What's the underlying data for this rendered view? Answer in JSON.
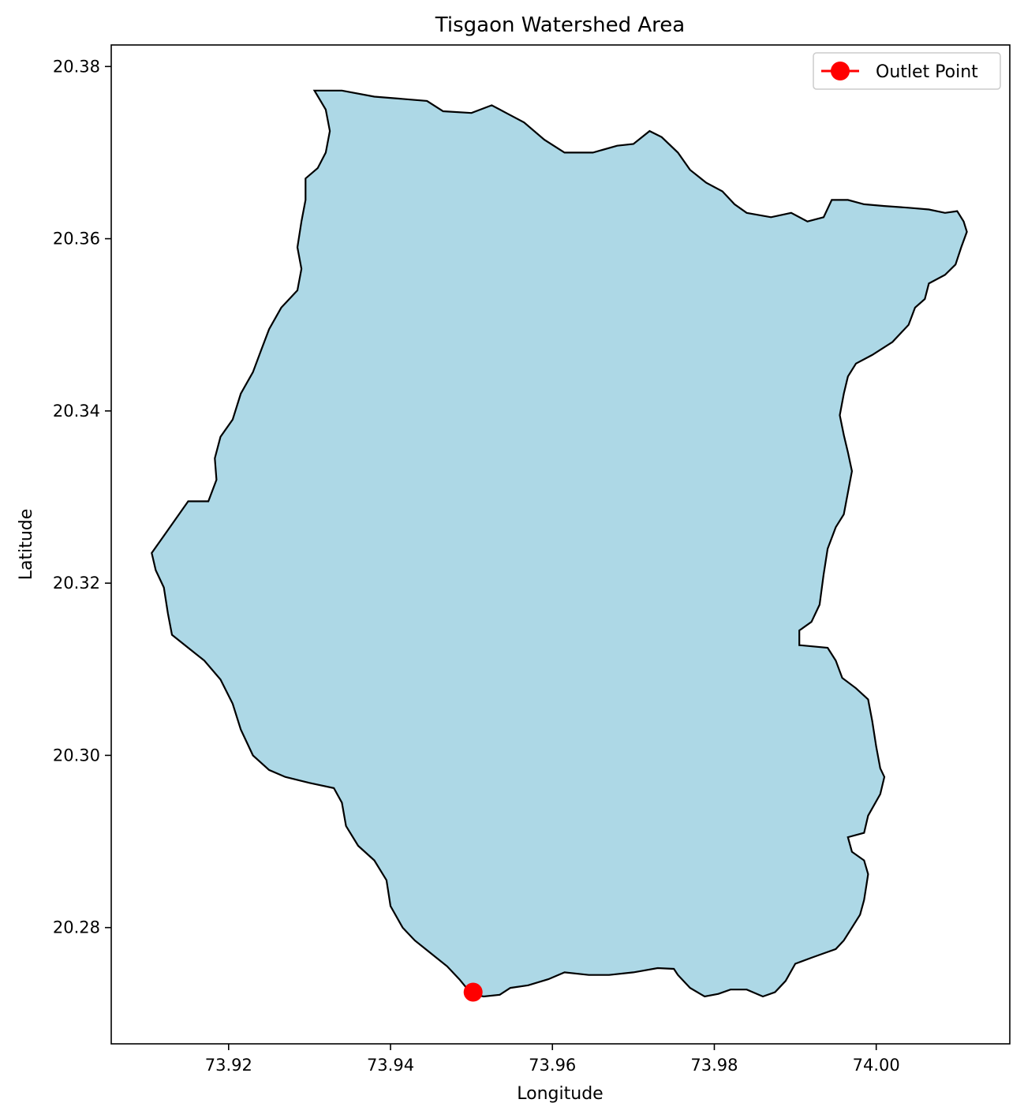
{
  "chart_data": {
    "type": "map",
    "title": "Tisgaon Watershed Area",
    "xlabel": "Longitude",
    "ylabel": "Latitude",
    "xlim": [
      73.9055,
      74.0165
    ],
    "ylim": [
      20.2665,
      20.3825
    ],
    "xticks": [
      73.92,
      73.94,
      73.96,
      73.98,
      74.0
    ],
    "xtick_labels": [
      "73.92",
      "73.94",
      "73.96",
      "73.98",
      "74.00"
    ],
    "yticks": [
      20.28,
      20.3,
      20.32,
      20.34,
      20.36,
      20.38
    ],
    "ytick_labels": [
      "20.28",
      "20.30",
      "20.32",
      "20.34",
      "20.36",
      "20.38"
    ],
    "watershed": {
      "fill": "#add8e6",
      "edge": "#000000",
      "boundary": [
        [
          73.9306,
          20.3772
        ],
        [
          73.934,
          20.3772
        ],
        [
          73.938,
          20.3765
        ],
        [
          73.942,
          20.3762
        ],
        [
          73.9445,
          20.376
        ],
        [
          73.9465,
          20.3748
        ],
        [
          73.95,
          20.3746
        ],
        [
          73.9525,
          20.3755
        ],
        [
          73.9545,
          20.3745
        ],
        [
          73.9565,
          20.3735
        ],
        [
          73.959,
          20.3715
        ],
        [
          73.9615,
          20.37
        ],
        [
          73.965,
          20.37
        ],
        [
          73.968,
          20.3708
        ],
        [
          73.97,
          20.371
        ],
        [
          73.972,
          20.3725
        ],
        [
          73.9735,
          20.3718
        ],
        [
          73.9755,
          20.37
        ],
        [
          73.977,
          20.368
        ],
        [
          73.979,
          20.3665
        ],
        [
          73.981,
          20.3655
        ],
        [
          73.9825,
          20.364
        ],
        [
          73.984,
          20.363
        ],
        [
          73.987,
          20.3625
        ],
        [
          73.9895,
          20.363
        ],
        [
          73.9915,
          20.362
        ],
        [
          73.9935,
          20.3625
        ],
        [
          73.9945,
          20.3645
        ],
        [
          73.9965,
          20.3645
        ],
        [
          73.9985,
          20.364
        ],
        [
          74.001,
          20.3638
        ],
        [
          74.004,
          20.3636
        ],
        [
          74.0065,
          20.3634
        ],
        [
          74.0085,
          20.363
        ],
        [
          74.01,
          20.3632
        ],
        [
          74.0108,
          20.362
        ],
        [
          74.0112,
          20.3608
        ],
        [
          74.0105,
          20.359
        ],
        [
          74.0098,
          20.357
        ],
        [
          74.0085,
          20.3558
        ],
        [
          74.0065,
          20.3548
        ],
        [
          74.006,
          20.353
        ],
        [
          74.0048,
          20.352
        ],
        [
          74.004,
          20.35
        ],
        [
          74.002,
          20.348
        ],
        [
          73.9995,
          20.3465
        ],
        [
          73.9975,
          20.3455
        ],
        [
          73.9965,
          20.344
        ],
        [
          73.996,
          20.342
        ],
        [
          73.9955,
          20.3395
        ],
        [
          73.996,
          20.3372
        ],
        [
          73.9965,
          20.3352
        ],
        [
          73.997,
          20.333
        ],
        [
          73.996,
          20.328
        ],
        [
          73.995,
          20.3265
        ],
        [
          73.994,
          20.324
        ],
        [
          73.9935,
          20.321
        ],
        [
          73.993,
          20.3175
        ],
        [
          73.992,
          20.3155
        ],
        [
          73.9905,
          20.3145
        ],
        [
          73.9905,
          20.3128
        ],
        [
          73.994,
          20.3125
        ],
        [
          73.995,
          20.311
        ],
        [
          73.9958,
          20.309
        ],
        [
          73.9975,
          20.3078
        ],
        [
          73.999,
          20.3065
        ],
        [
          73.9995,
          20.304
        ],
        [
          74.0,
          20.301
        ],
        [
          74.0005,
          20.2985
        ],
        [
          74.001,
          20.2975
        ],
        [
          74.0005,
          20.2955
        ],
        [
          73.999,
          20.293
        ],
        [
          73.9985,
          20.291
        ],
        [
          73.9965,
          20.2905
        ],
        [
          73.997,
          20.2888
        ],
        [
          73.9985,
          20.2878
        ],
        [
          73.999,
          20.2862
        ],
        [
          73.9988,
          20.285
        ],
        [
          73.9985,
          20.2832
        ],
        [
          73.998,
          20.2815
        ],
        [
          73.997,
          20.28
        ],
        [
          73.996,
          20.2785
        ],
        [
          73.995,
          20.2775
        ],
        [
          73.9935,
          20.277
        ],
        [
          73.992,
          20.2765
        ],
        [
          73.99,
          20.2758
        ],
        [
          73.9888,
          20.2738
        ],
        [
          73.9875,
          20.2725
        ],
        [
          73.986,
          20.272
        ],
        [
          73.984,
          20.2728
        ],
        [
          73.982,
          20.2728
        ],
        [
          73.9805,
          20.2723
        ],
        [
          73.9788,
          20.272
        ],
        [
          73.977,
          20.273
        ],
        [
          73.9755,
          20.2745
        ],
        [
          73.975,
          20.2752
        ],
        [
          73.973,
          20.2753
        ],
        [
          73.97,
          20.2748
        ],
        [
          73.967,
          20.2745
        ],
        [
          73.9645,
          20.2745
        ],
        [
          73.9615,
          20.2748
        ],
        [
          73.9595,
          20.274
        ],
        [
          73.957,
          20.2733
        ],
        [
          73.9548,
          20.273
        ],
        [
          73.9535,
          20.2722
        ],
        [
          73.9515,
          20.272
        ],
        [
          73.95,
          20.2723
        ],
        [
          73.9485,
          20.274
        ],
        [
          73.947,
          20.2755
        ],
        [
          73.945,
          20.277
        ],
        [
          73.943,
          20.2785
        ],
        [
          73.9415,
          20.28
        ],
        [
          73.94,
          20.2825
        ],
        [
          73.9395,
          20.2855
        ],
        [
          73.938,
          20.2878
        ],
        [
          73.936,
          20.2895
        ],
        [
          73.9345,
          20.2918
        ],
        [
          73.934,
          20.2945
        ],
        [
          73.933,
          20.2962
        ],
        [
          73.93,
          20.2968
        ],
        [
          73.927,
          20.2975
        ],
        [
          73.925,
          20.2983
        ],
        [
          73.923,
          20.3
        ],
        [
          73.9215,
          20.303
        ],
        [
          73.9205,
          20.306
        ],
        [
          73.919,
          20.3088
        ],
        [
          73.917,
          20.311
        ],
        [
          73.915,
          20.3125
        ],
        [
          73.913,
          20.314
        ],
        [
          73.9125,
          20.3165
        ],
        [
          73.912,
          20.3195
        ],
        [
          73.911,
          20.3215
        ],
        [
          73.9105,
          20.3235
        ],
        [
          73.912,
          20.3255
        ],
        [
          73.9135,
          20.3275
        ],
        [
          73.915,
          20.3295
        ],
        [
          73.9175,
          20.3295
        ],
        [
          73.9185,
          20.332
        ],
        [
          73.9183,
          20.3345
        ],
        [
          73.919,
          20.337
        ],
        [
          73.9205,
          20.339
        ],
        [
          73.9215,
          20.342
        ],
        [
          73.923,
          20.3445
        ],
        [
          73.924,
          20.347
        ],
        [
          73.925,
          20.3495
        ],
        [
          73.9265,
          20.352
        ],
        [
          73.9285,
          20.354
        ],
        [
          73.929,
          20.3565
        ],
        [
          73.9285,
          20.359
        ],
        [
          73.929,
          20.362
        ],
        [
          73.9295,
          20.3645
        ],
        [
          73.9295,
          20.367
        ],
        [
          73.931,
          20.3682
        ],
        [
          73.932,
          20.37
        ],
        [
          73.9325,
          20.3725
        ],
        [
          73.932,
          20.375
        ]
      ]
    },
    "series": [
      {
        "name": "Outlet Point",
        "type": "point",
        "color": "#ff0000",
        "x": [
          73.9502
        ],
        "y": [
          20.2725
        ]
      }
    ],
    "legend": {
      "position": "top-right",
      "entries": [
        "Outlet Point"
      ]
    }
  }
}
